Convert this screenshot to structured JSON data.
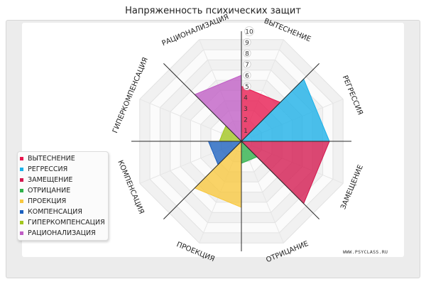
{
  "chart_data": {
    "type": "radar",
    "title": "Напряженность психических защит",
    "axes": [
      "ВЫТЕСНЕНИЕ",
      "РЕГРЕССИЯ",
      "ЗАМЕЩЕНИЕ",
      "ОТРИЦАНИЕ",
      "ПРОЕКЦИЯ",
      "КОМПЕНСАЦИЯ",
      "ГИПЕРКОМПЕНСАЦИЯ",
      "РАЦИОНАЛИЗАЦИЯ"
    ],
    "range": [
      0,
      10
    ],
    "ticks": [
      "1",
      "2",
      "3",
      "4",
      "5",
      "6",
      "7",
      "8",
      "9",
      "10"
    ],
    "grid": true,
    "legend_position": "left",
    "series": [
      {
        "name": "ВЫТЕСНЕНИЕ",
        "axis": 0,
        "value": 5,
        "color": "#e8174e"
      },
      {
        "name": "РЕГРЕССИЯ",
        "axis": 1,
        "value": 8,
        "color": "#1ab0e8"
      },
      {
        "name": "ЗАМЕЩЕНИЕ",
        "axis": 2,
        "value": 8,
        "color": "#d3174e"
      },
      {
        "name": "ОТРИЦАНИЕ",
        "axis": 3,
        "value": 2,
        "color": "#2fb24a"
      },
      {
        "name": "ПРОЕКЦИЯ",
        "axis": 4,
        "value": 6,
        "color": "#f8c83e"
      },
      {
        "name": "КОМПЕНСАЦИЯ",
        "axis": 5,
        "value": 3,
        "color": "#1a5fbe"
      },
      {
        "name": "ГИПЕРКОМПЕНСАЦИЯ",
        "axis": 6,
        "value": 2,
        "color": "#a3c71e"
      },
      {
        "name": "РАЦИОНАЛИЗАЦИЯ",
        "axis": 7,
        "value": 6,
        "color": "#c05ec5"
      }
    ]
  },
  "watermark": "WWW.PSYCLASS.RU"
}
